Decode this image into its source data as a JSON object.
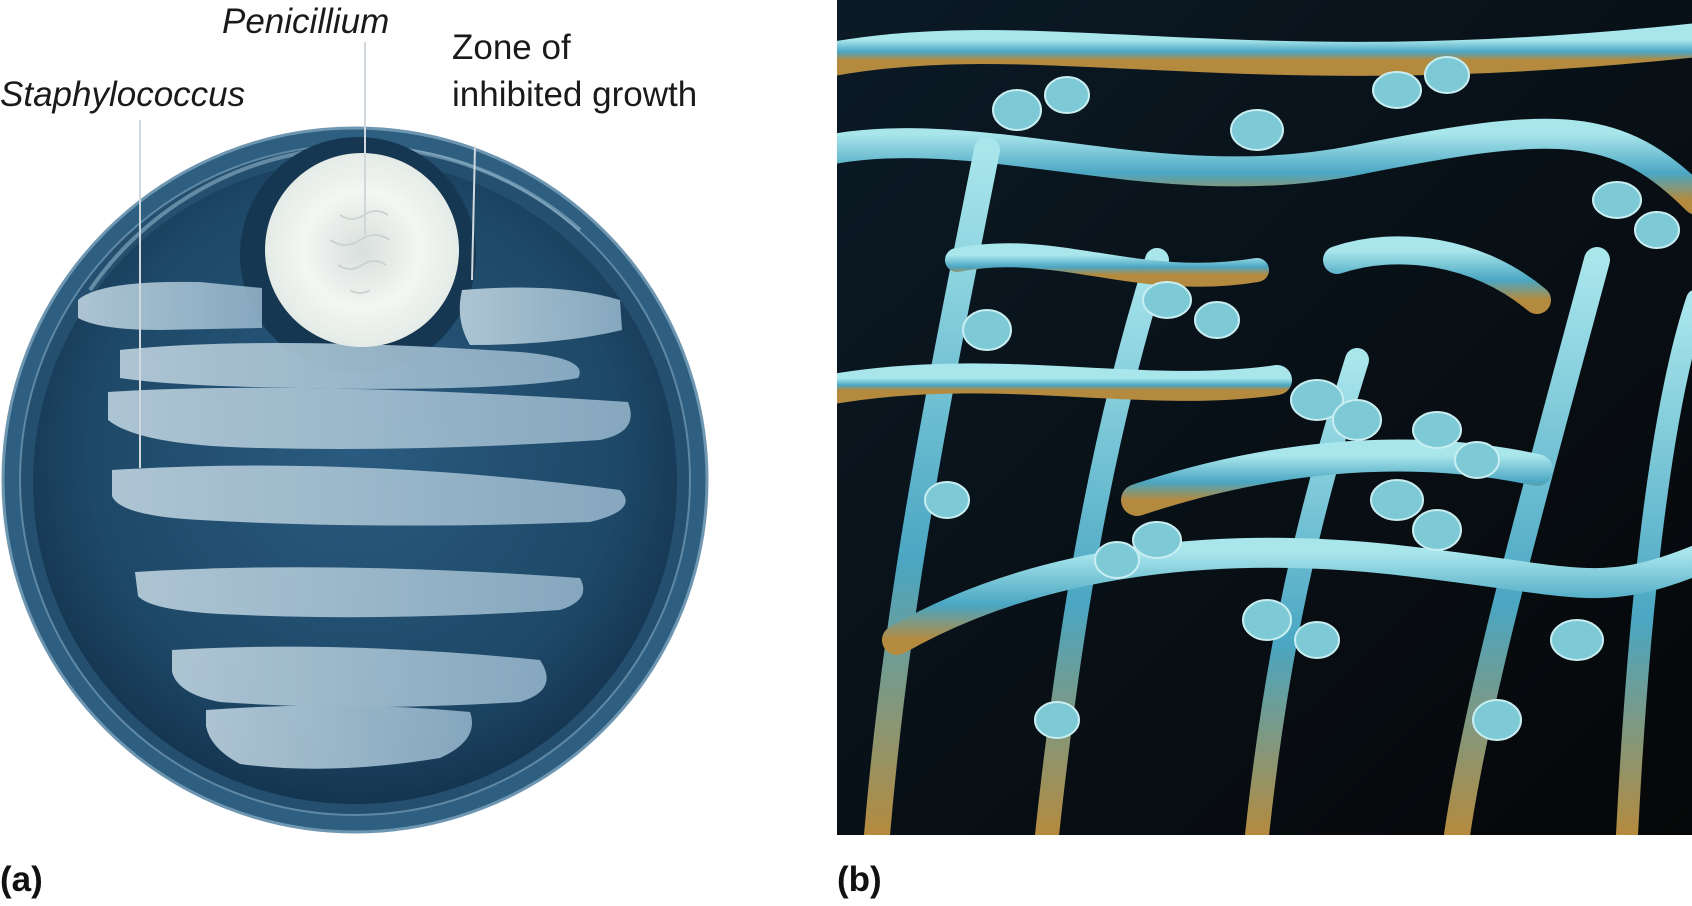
{
  "panel_a": {
    "letter": "(a)",
    "labels": {
      "staphylococcus": "Staphylococcus",
      "penicillium": "Penicillium",
      "zone_line1": "Zone of",
      "zone_line2": "inhibited growth"
    },
    "colors": {
      "agar": "#1f4a6b",
      "rim": "#3b6889",
      "streak": "#a9c3d4",
      "colony": "#f2f4f2",
      "inhibition_zone": "#183a55"
    }
  },
  "panel_b": {
    "letter": "(b)",
    "colors": {
      "background": "#0a0d12",
      "hyphae": "#5fb3c8",
      "highlight": "#9fe0e8",
      "warm": "#c9a352"
    }
  }
}
